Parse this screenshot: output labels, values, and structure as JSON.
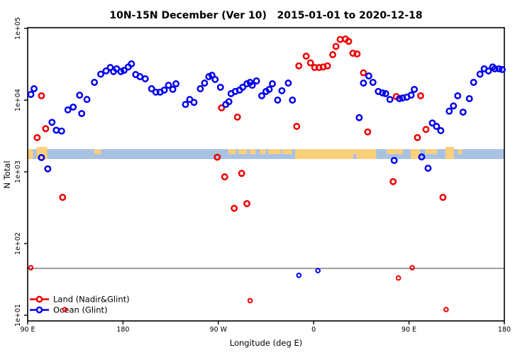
{
  "title": "10N-15N December (Ver 10)   2015-01-01 to 2020-12-18",
  "chart_data": {
    "type": "scatter",
    "title": "10N-15N December (Ver 10)   2015-01-01 to 2020-12-18",
    "xlabel": "Longitude (deg E)",
    "ylabel": "N Total",
    "x_axis": {
      "note": "longitude axis wraps: 90E eastward to 180, 90W, 0, 90E, 180",
      "range_deg": [
        90,
        540
      ],
      "ticks_deg": [
        90,
        180,
        270,
        360,
        450,
        540
      ],
      "tick_labels": [
        "90 E",
        "180",
        "90 W",
        "0",
        "90 E",
        "180"
      ]
    },
    "y_axis": {
      "scale": "log10",
      "ticks": [
        100000,
        10000,
        1000,
        100,
        10
      ],
      "tick_labels": [
        "1e+05",
        "1e+04",
        "1e+03",
        "1e+02",
        "1e+01"
      ]
    },
    "reference_line": {
      "n_value": 45,
      "color": "#808080"
    },
    "map_strip": {
      "n_center": 1800,
      "ocean_color": "#a9c2e2",
      "land_color": "#fbd07c",
      "patches": [
        {
          "lon": 90,
          "w": 5,
          "v": "full"
        },
        {
          "lon": 98.5,
          "w": 10,
          "v": "tall"
        },
        {
          "lon": 153,
          "w": 6,
          "v": "top"
        },
        {
          "lon": 279.5,
          "w": 7,
          "v": "top"
        },
        {
          "lon": 289,
          "w": 8,
          "v": "top"
        },
        {
          "lon": 299.5,
          "w": 6,
          "v": "top"
        },
        {
          "lon": 309,
          "w": 5.5,
          "v": "top"
        },
        {
          "lon": 317,
          "w": 12,
          "v": "top"
        },
        {
          "lon": 330.5,
          "w": 9,
          "v": "top"
        },
        {
          "lon": 342.5,
          "w": 76.5,
          "v": "full"
        },
        {
          "lon": 397.3,
          "w": 3.3,
          "v": "notch"
        },
        {
          "lon": 429,
          "w": 9.5,
          "v": "top"
        },
        {
          "lon": 439,
          "w": 5.5,
          "v": "top"
        },
        {
          "lon": 451.5,
          "w": 9,
          "v": "full"
        },
        {
          "lon": 465.5,
          "w": 11,
          "v": "top"
        },
        {
          "lon": 484.5,
          "w": 8,
          "v": "tall"
        },
        {
          "lon": 496,
          "w": 4,
          "v": "top"
        }
      ]
    },
    "series": [
      {
        "name": "Land (Nadir&Glint)",
        "color": "#ee0000",
        "points": [
          [
            103,
            11500
          ],
          [
            107,
            4000
          ],
          [
            99,
            3000
          ],
          [
            123,
            440
          ],
          [
            93,
            46
          ],
          [
            125,
            12
          ],
          [
            269,
            1600
          ],
          [
            273,
            7800
          ],
          [
            276,
            850
          ],
          [
            285,
            310
          ],
          [
            288,
            5800
          ],
          [
            292,
            950
          ],
          [
            297,
            360
          ],
          [
            300,
            16
          ],
          [
            344,
            4300
          ],
          [
            346,
            30000
          ],
          [
            353,
            41000
          ],
          [
            357,
            33000
          ],
          [
            361,
            28500
          ],
          [
            365,
            28500
          ],
          [
            369,
            29000
          ],
          [
            373,
            30000
          ],
          [
            378,
            43000
          ],
          [
            381,
            56000
          ],
          [
            385,
            70000
          ],
          [
            390,
            71000
          ],
          [
            393,
            66000
          ],
          [
            397,
            45000
          ],
          [
            401,
            44000
          ],
          [
            407,
            24000
          ],
          [
            411,
            3600
          ],
          [
            435,
            730
          ],
          [
            438,
            11200
          ],
          [
            440,
            33
          ],
          [
            453,
            46
          ],
          [
            458,
            3000
          ],
          [
            461,
            11500
          ],
          [
            466,
            3900
          ],
          [
            482,
            440
          ],
          [
            485,
            12
          ]
        ]
      },
      {
        "name": "Ocean (Glint)",
        "color": "#0000ee",
        "points": [
          [
            93,
            12000
          ],
          [
            96,
            14400
          ],
          [
            103,
            1580
          ],
          [
            109,
            1100
          ],
          [
            113,
            4900
          ],
          [
            117,
            3800
          ],
          [
            122,
            3700
          ],
          [
            128,
            7300
          ],
          [
            133,
            8000
          ],
          [
            139,
            11700
          ],
          [
            141,
            6500
          ],
          [
            146,
            10200
          ],
          [
            153,
            17700
          ],
          [
            159,
            23000
          ],
          [
            164,
            25500
          ],
          [
            168,
            28500
          ],
          [
            171,
            25000
          ],
          [
            174,
            27300
          ],
          [
            178,
            25000
          ],
          [
            181,
            26000
          ],
          [
            185,
            29000
          ],
          [
            188,
            32000
          ],
          [
            192,
            22700
          ],
          [
            196,
            21200
          ],
          [
            201,
            19800
          ],
          [
            207,
            14400
          ],
          [
            211,
            12900
          ],
          [
            215,
            12900
          ],
          [
            219,
            13800
          ],
          [
            223,
            16100
          ],
          [
            227,
            14100
          ],
          [
            230,
            16900
          ],
          [
            239,
            8700
          ],
          [
            243,
            10200
          ],
          [
            247,
            9300
          ],
          [
            253,
            14400
          ],
          [
            257,
            17300
          ],
          [
            261,
            21200
          ],
          [
            264,
            22200
          ],
          [
            267,
            19400
          ],
          [
            272,
            15100
          ],
          [
            277,
            8700
          ],
          [
            280,
            9500
          ],
          [
            282,
            12300
          ],
          [
            286,
            13200
          ],
          [
            290,
            13800
          ],
          [
            293,
            15100
          ],
          [
            297,
            16900
          ],
          [
            300,
            17700
          ],
          [
            302,
            16100
          ],
          [
            306,
            18500
          ],
          [
            311,
            11500
          ],
          [
            315,
            13200
          ],
          [
            318,
            14100
          ],
          [
            321,
            16900
          ],
          [
            326,
            10000
          ],
          [
            330,
            13500
          ],
          [
            336,
            17300
          ],
          [
            340,
            10000
          ],
          [
            346,
            36
          ],
          [
            364,
            42
          ],
          [
            403,
            5700
          ],
          [
            407,
            17300
          ],
          [
            412,
            21700
          ],
          [
            416,
            17700
          ],
          [
            421,
            13200
          ],
          [
            425,
            12600
          ],
          [
            428,
            12300
          ],
          [
            432,
            10200
          ],
          [
            436,
            1440
          ],
          [
            441,
            10500
          ],
          [
            444,
            10700
          ],
          [
            448,
            11000
          ],
          [
            452,
            11700
          ],
          [
            455,
            14100
          ],
          [
            462,
            1610
          ],
          [
            468,
            1120
          ],
          [
            472,
            4800
          ],
          [
            476,
            4300
          ],
          [
            480,
            3750
          ],
          [
            488,
            7000
          ],
          [
            492,
            8300
          ],
          [
            496,
            11500
          ],
          [
            501,
            6800
          ],
          [
            507,
            10500
          ],
          [
            511,
            17700
          ],
          [
            517,
            23000
          ],
          [
            521,
            27300
          ],
          [
            525,
            25500
          ],
          [
            529,
            29000
          ],
          [
            531,
            27300
          ],
          [
            535,
            27300
          ],
          [
            538,
            26700
          ]
        ]
      }
    ],
    "legend": {
      "position": "bottom-left",
      "entries": [
        "Land (Nadir&Glint)",
        "Ocean (Glint)"
      ]
    }
  }
}
